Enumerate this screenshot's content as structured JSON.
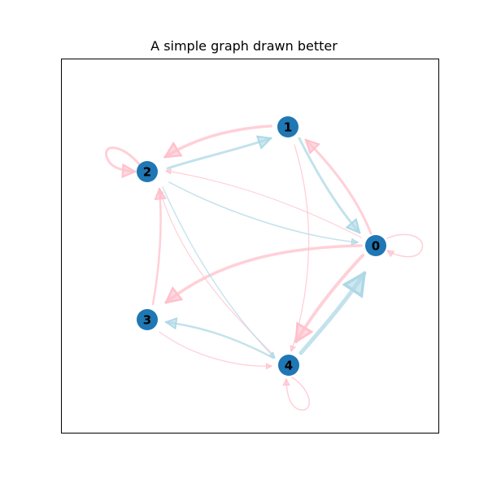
{
  "title": "A simple graph drawn better",
  "colors": {
    "node": "#1f77b4",
    "edge_pink": "#ffc0cb",
    "edge_blue": "#add8e6",
    "label": "#000000",
    "frame": "#000000"
  },
  "nodes": [
    {
      "id": "0",
      "label": "0"
    },
    {
      "id": "1",
      "label": "1"
    },
    {
      "id": "2",
      "label": "2"
    },
    {
      "id": "3",
      "label": "3"
    },
    {
      "id": "4",
      "label": "4"
    }
  ],
  "edges": [
    {
      "source": "0",
      "target": "0",
      "color": "pink"
    },
    {
      "source": "0",
      "target": "1",
      "color": "pink"
    },
    {
      "source": "0",
      "target": "2",
      "color": "blue"
    },
    {
      "source": "0",
      "target": "3",
      "color": "pink"
    },
    {
      "source": "0",
      "target": "4",
      "color": "pink"
    },
    {
      "source": "1",
      "target": "0",
      "color": "blue"
    },
    {
      "source": "1",
      "target": "2",
      "color": "pink"
    },
    {
      "source": "1",
      "target": "4",
      "color": "pink"
    },
    {
      "source": "2",
      "target": "1",
      "color": "blue"
    },
    {
      "source": "2",
      "target": "2",
      "color": "pink"
    },
    {
      "source": "2",
      "target": "4",
      "color": "blue"
    },
    {
      "source": "0",
      "target": "2",
      "color": "pink"
    },
    {
      "source": "3",
      "target": "2",
      "color": "pink"
    },
    {
      "source": "3",
      "target": "4",
      "color": "pink"
    },
    {
      "source": "4",
      "target": "0",
      "color": "blue"
    },
    {
      "source": "4",
      "target": "2",
      "color": "pink"
    },
    {
      "source": "4",
      "target": "3",
      "color": "blue"
    },
    {
      "source": "4",
      "target": "4",
      "color": "pink"
    }
  ]
}
